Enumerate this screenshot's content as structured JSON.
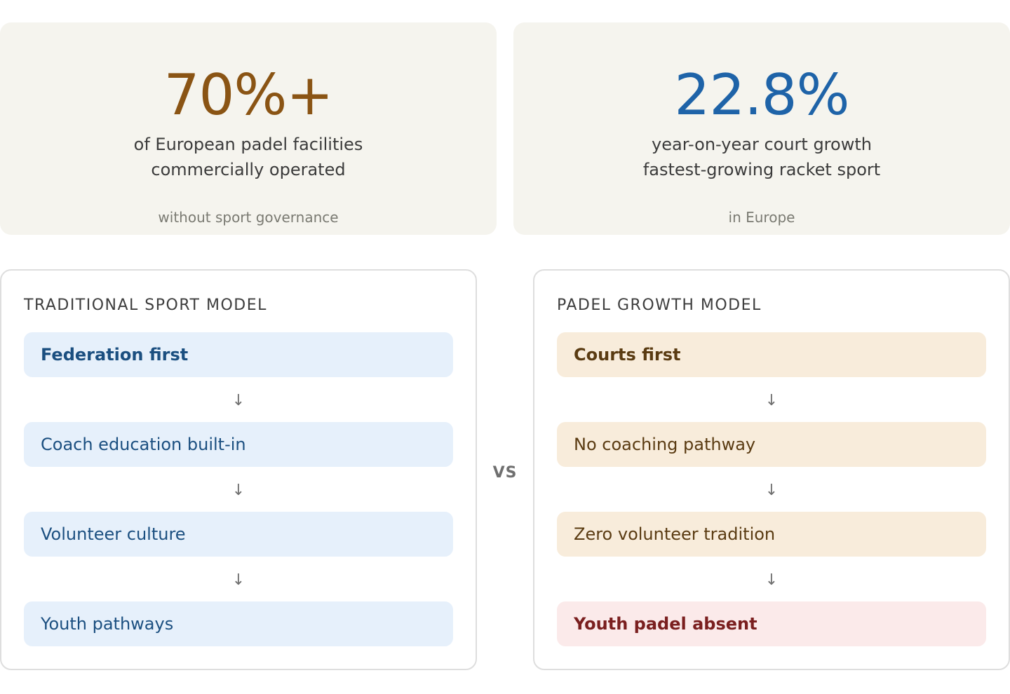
{
  "stats": [
    {
      "value": "70%+",
      "line1": "of European padel facilities",
      "line2": "commercially operated",
      "note": "without sport governance",
      "color": "#8a5414"
    },
    {
      "value": "22.8%",
      "line1": "year-on-year court growth",
      "line2": "fastest-growing racket sport",
      "note": "in Europe",
      "color": "#1e63a8"
    }
  ],
  "comparison": {
    "vs_label": "VS",
    "left": {
      "title": "TRADITIONAL SPORT MODEL",
      "steps": [
        "Federation first",
        "Coach education built-in",
        "Volunteer culture",
        "Youth pathways"
      ]
    },
    "right": {
      "title": "PADEL GROWTH MODEL",
      "steps": [
        "Courts first",
        "No coaching pathway",
        "Zero volunteer tradition",
        "Youth padel absent"
      ]
    },
    "arrow_icon": "down-arrow-icon"
  },
  "colors": {
    "traditional_step_bg": "#e6f0fb",
    "padel_step_bg": "#f8ecdb",
    "warning_step_bg": "#fbeaea"
  }
}
